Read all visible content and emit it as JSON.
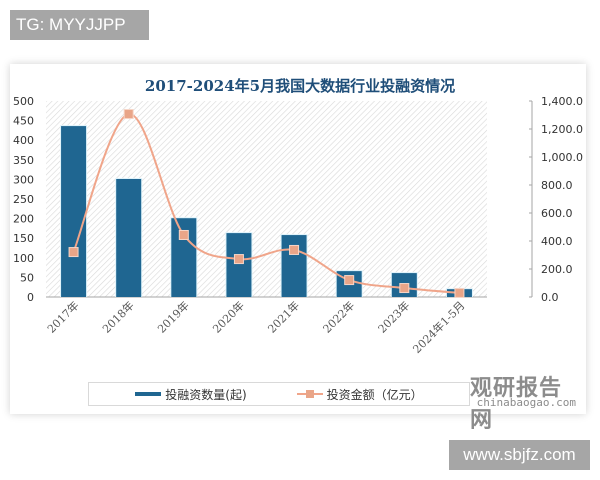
{
  "watermarks": {
    "top_left": "TG: MYYJJPP",
    "bottom_right": "www.sbjfz.com",
    "logo_cn": "观研报告网",
    "logo_en": "chinabaogao.com"
  },
  "colors": {
    "bar": "#1f6691",
    "line": "#f0a58a",
    "marker": "#e9a588",
    "title": "#1f4e79"
  },
  "chart_data": {
    "type": "bar",
    "title": "2017-2024年5月我国大数据行业投融资情况",
    "xlabel": "",
    "ylabel": "",
    "categories": [
      "2017年",
      "2018年",
      "2019年",
      "2020年",
      "2021年",
      "2022年",
      "2023年",
      "2024年1-5月"
    ],
    "series": [
      {
        "name": "投融资数量(起)",
        "type": "bar",
        "axis": "left",
        "values": [
          436,
          301,
          201,
          163,
          158,
          66,
          61,
          20
        ]
      },
      {
        "name": "投资金额（亿元）",
        "type": "line",
        "axis": "right",
        "values": [
          321,
          1307,
          443,
          271,
          336,
          121,
          64,
          29
        ]
      }
    ],
    "ylim": [
      0,
      500
    ],
    "y_ticks": [
      "0",
      "50",
      "100",
      "150",
      "200",
      "250",
      "300",
      "350",
      "400",
      "450",
      "500"
    ],
    "y2lim": [
      0,
      1400
    ],
    "y2_ticks": [
      "0.0",
      "200.0",
      "400.0",
      "600.0",
      "800.0",
      "1,000.0",
      "1,200.0",
      "1,400.0"
    ],
    "legend_position": "bottom",
    "grid": false
  },
  "legend": {
    "bar_label": "投融资数量(起)",
    "line_label": "投资金额（亿元）"
  }
}
